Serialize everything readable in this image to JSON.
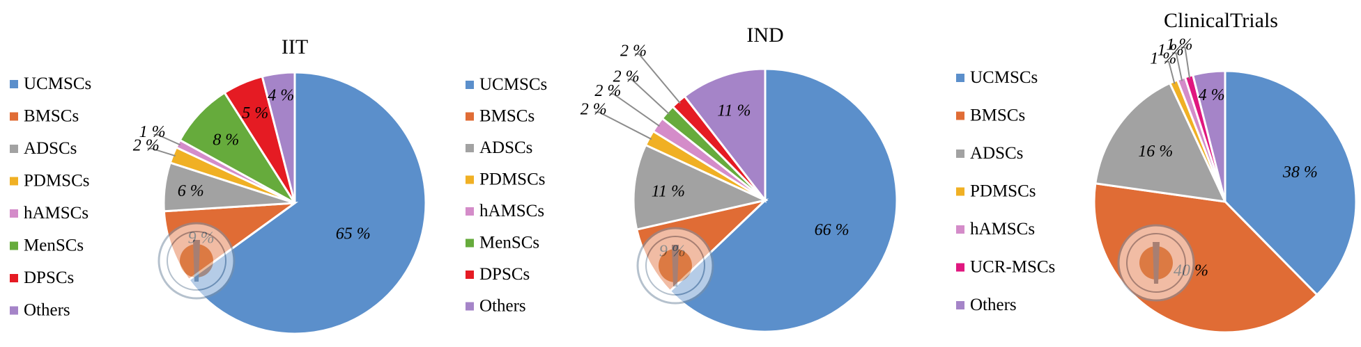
{
  "colors": {
    "UCMSCs": "#5b8fcb",
    "BMSCs": "#e06c35",
    "ADSCs": "#a2a2a2",
    "PDMSCs": "#f0b024",
    "hAMSCs": "#d48cc9",
    "MenSCs": "#66ab3c",
    "DPSCs": "#e51b23",
    "UCR-MSCs": "#e0177f",
    "Others": "#a584c8"
  },
  "chart_data": [
    {
      "type": "pie",
      "title": "IIT",
      "legend": [
        "UCMSCs",
        "BMSCs",
        "ADSCs",
        "PDMSCs",
        "hAMSCs",
        "MenSCs",
        "DPSCs",
        "Others"
      ],
      "slices": [
        {
          "name": "UCMSCs",
          "value": 65,
          "label": "65 %"
        },
        {
          "name": "BMSCs",
          "value": 9,
          "label": "9 %"
        },
        {
          "name": "ADSCs",
          "value": 6,
          "label": "6 %"
        },
        {
          "name": "PDMSCs",
          "value": 2,
          "label": "2 %"
        },
        {
          "name": "hAMSCs",
          "value": 1,
          "label": "1 %"
        },
        {
          "name": "MenSCs",
          "value": 8,
          "label": "8 %"
        },
        {
          "name": "DPSCs",
          "value": 5,
          "label": "5 %"
        },
        {
          "name": "Others",
          "value": 4,
          "label": "4 %"
        }
      ]
    },
    {
      "type": "pie",
      "title": "IND",
      "legend": [
        "UCMSCs",
        "BMSCs",
        "ADSCs",
        "PDMSCs",
        "hAMSCs",
        "MenSCs",
        "DPSCs",
        "Others"
      ],
      "slices": [
        {
          "name": "UCMSCs",
          "value": 66,
          "label": "66 %"
        },
        {
          "name": "BMSCs",
          "value": 9,
          "label": "9 %"
        },
        {
          "name": "ADSCs",
          "value": 11,
          "label": "11 %"
        },
        {
          "name": "PDMSCs",
          "value": 2,
          "label": "2 %"
        },
        {
          "name": "hAMSCs",
          "value": 2,
          "label": "2 %"
        },
        {
          "name": "MenSCs",
          "value": 2,
          "label": "2 %"
        },
        {
          "name": "DPSCs",
          "value": 2,
          "label": "2 %"
        },
        {
          "name": "Others",
          "value": 11,
          "label": "11 %"
        }
      ]
    },
    {
      "type": "pie",
      "title": "ClinicalTrials",
      "legend": [
        "UCMSCs",
        "BMSCs",
        "ADSCs",
        "PDMSCs",
        "hAMSCs",
        "UCR-MSCs",
        "Others"
      ],
      "slices": [
        {
          "name": "UCMSCs",
          "value": 38,
          "label": "38 %"
        },
        {
          "name": "BMSCs",
          "value": 40,
          "label": "40 %"
        },
        {
          "name": "ADSCs",
          "value": 16,
          "label": "16 %"
        },
        {
          "name": "PDMSCs",
          "value": 1,
          "label": "1 %"
        },
        {
          "name": "hAMSCs",
          "value": 1,
          "label": "1 %"
        },
        {
          "name": "UCR-MSCs",
          "value": 1,
          "label": "1 %"
        },
        {
          "name": "Others",
          "value": 4,
          "label": "4 %"
        }
      ]
    }
  ]
}
